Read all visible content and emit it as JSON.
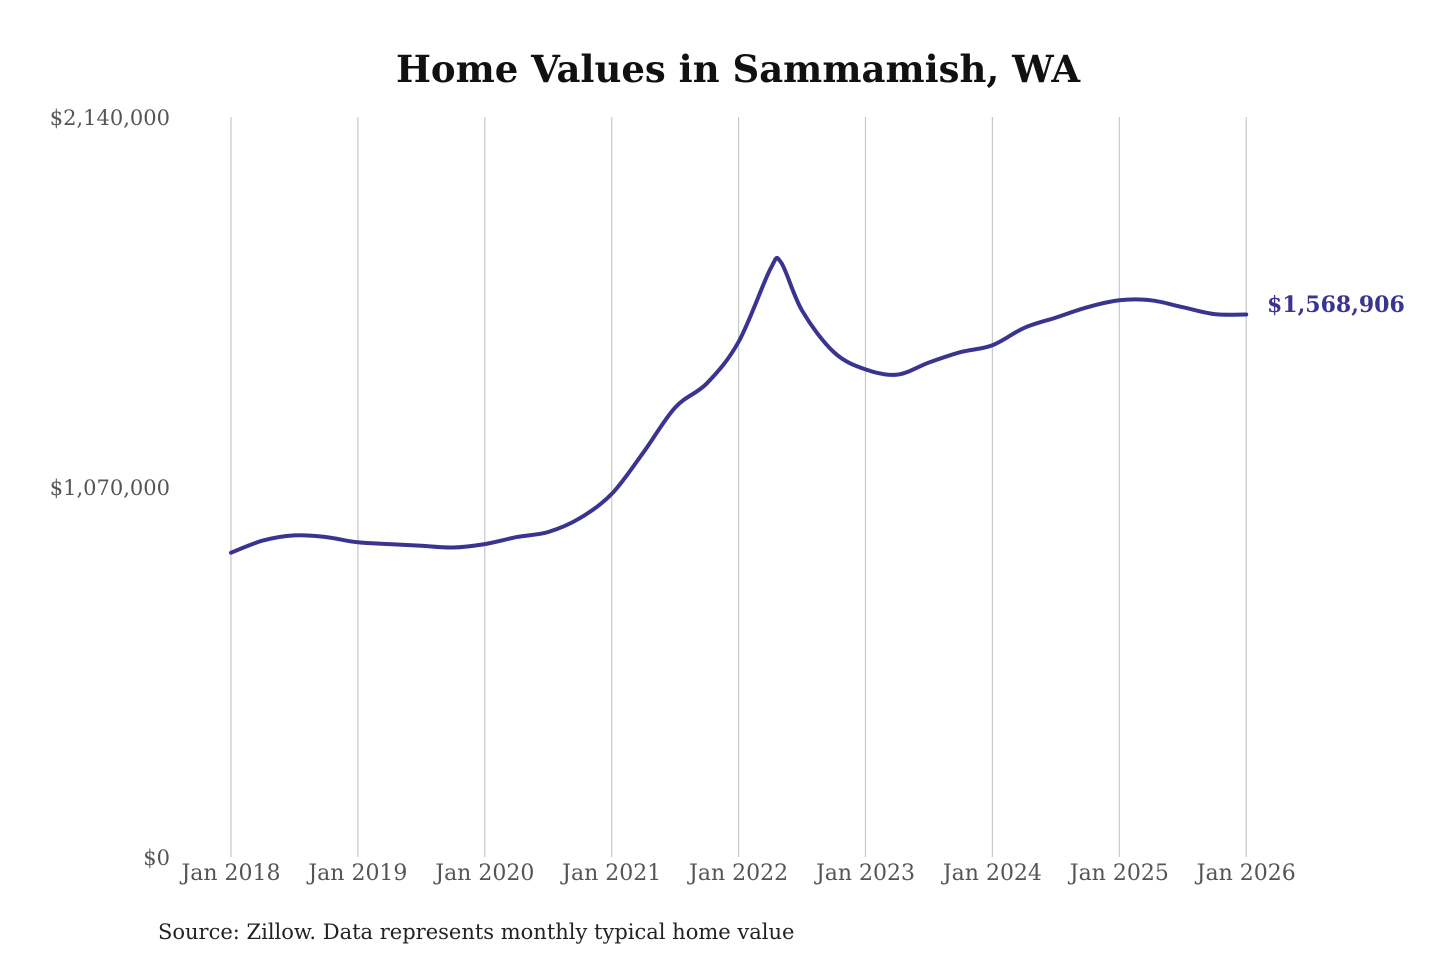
{
  "chart_data": {
    "type": "line",
    "title": "Home Values in Sammamish, WA",
    "source": "Source: Zillow. Data represents monthly typical home value",
    "ylim": [
      0,
      2140000
    ],
    "y_ticks": [
      {
        "value": 0,
        "label": "$0"
      },
      {
        "value": 1070000,
        "label": "$1,070,000"
      },
      {
        "value": 2140000,
        "label": "$2,140,000"
      }
    ],
    "x_ticks": [
      "Jan 2018",
      "Jan 2019",
      "Jan 2020",
      "Jan 2021",
      "Jan 2022",
      "Jan 2023",
      "Jan 2024",
      "Jan 2025",
      "Jan 2026"
    ],
    "grid": "vertical",
    "line_color": "#3a3390",
    "end_label": "$1,568,906",
    "series": [
      {
        "x": [
          "Jan 2018",
          "Apr 2018",
          "Jul 2018",
          "Oct 2018",
          "Jan 2019",
          "Apr 2019",
          "Jul 2019",
          "Oct 2019",
          "Jan 2020",
          "Apr 2020",
          "Jul 2020",
          "Oct 2020",
          "Jan 2021",
          "Apr 2021",
          "Jul 2021",
          "Oct 2021",
          "Jan 2022",
          "Apr 2022",
          "May 2022",
          "Jul 2022",
          "Oct 2022",
          "Jan 2023",
          "Apr 2023",
          "Jul 2023",
          "Oct 2023",
          "Jan 2024",
          "Apr 2024",
          "Jul 2024",
          "Oct 2024",
          "Jan 2025",
          "Apr 2025",
          "Jul 2025",
          "Oct 2025",
          "Jan 2026"
        ],
        "values": [
          880000,
          915000,
          930000,
          925000,
          910000,
          905000,
          900000,
          895000,
          905000,
          925000,
          940000,
          980000,
          1050000,
          1170000,
          1300000,
          1370000,
          1490000,
          1700000,
          1720000,
          1580000,
          1460000,
          1410000,
          1395000,
          1430000,
          1460000,
          1480000,
          1530000,
          1560000,
          1590000,
          1610000,
          1610000,
          1590000,
          1570000,
          1568906
        ]
      }
    ]
  }
}
